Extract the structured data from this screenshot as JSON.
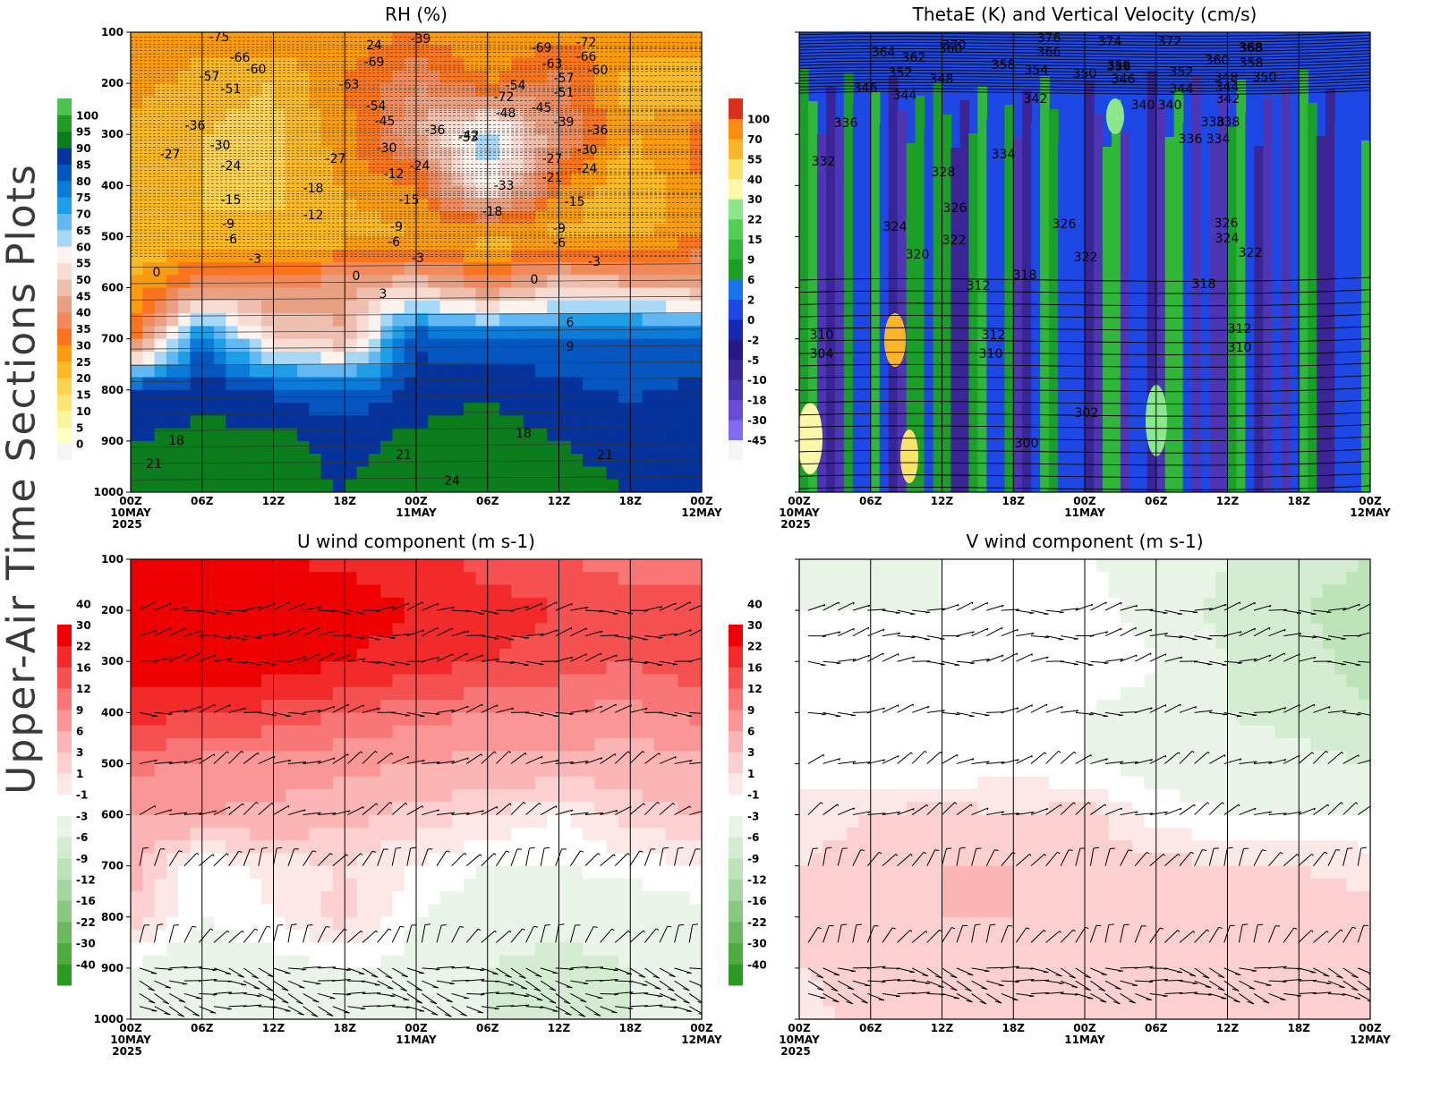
{
  "figure_title": "Upper-Air Time Sections Plots",
  "colors": {
    "rh": [
      "#f5f5f5",
      "#ffffc4",
      "#fdf59c",
      "#fde575",
      "#fcd350",
      "#fbb925",
      "#fb9b10",
      "#f9741c",
      "#f08a5a",
      "#e7a182",
      "#eebfae",
      "#f6dcd2",
      "#fcf3ef",
      "#a7d9f7",
      "#63b8f3",
      "#1f9ee8",
      "#0a7bd8",
      "#0656c2",
      "#05339b",
      "#0b7d1c",
      "#219a28",
      "#4cc251",
      "#82e57f"
    ],
    "thetae_w": [
      "#f5f5f5",
      "#836bf0",
      "#6a4ed2",
      "#4e35b3",
      "#3a2597",
      "#241a87",
      "#1428b4",
      "#1e48e6",
      "#1873ec",
      "#1a9f28",
      "#30b73a",
      "#55ce55",
      "#8ce68c",
      "#fbf8a8",
      "#f9e36a",
      "#fbb628",
      "#f98c12",
      "#d8321c",
      "#b71d18",
      "#951b15"
    ],
    "wind": [
      "#2b9a20",
      "#4faa42",
      "#6cb962",
      "#88c882",
      "#a4d79f",
      "#bde3b8",
      "#d4ecd1",
      "#e9f5e6",
      "#ffffff",
      "#fde8e8",
      "#fcd0d0",
      "#fbb5b5",
      "#fa9696",
      "#f87676",
      "#f55151",
      "#f22a2a",
      "#ee0000"
    ]
  },
  "panels": [
    {
      "id": "rh",
      "title": "RH (%)",
      "colorbar_labels": [
        "0",
        "5",
        "10",
        "15",
        "20",
        "25",
        "30",
        "35",
        "40",
        "45",
        "50",
        "55",
        "60",
        "65",
        "70",
        "75",
        "80",
        "85",
        "90",
        "95",
        "100"
      ],
      "chart_data": {
        "type": "heatmap",
        "title": "RH (%)",
        "y_axis": "pressure (hPa)",
        "ylim": [
          1000,
          100
        ],
        "xlim": [
          "2025-05-10 00Z",
          "2025-05-12 00Z"
        ],
        "x_ticks": [
          "00Z",
          "06Z",
          "12Z",
          "18Z",
          "00Z",
          "06Z",
          "12Z",
          "18Z",
          "00Z"
        ],
        "x_date_labels": [
          "10MAY",
          "11MAY",
          "12MAY"
        ],
        "x_year_label": "2025",
        "y_ticks": [
          "100",
          "200",
          "300",
          "400",
          "500",
          "600",
          "700",
          "800",
          "900",
          "1000"
        ],
        "field_levels": [
          1000,
          900,
          800,
          700,
          600,
          500,
          400,
          300,
          200,
          100
        ],
        "field_hours": [
          0,
          6,
          12,
          18,
          24,
          30,
          36,
          42,
          48
        ],
        "field_values": [
          [
            92,
            95,
            92,
            90,
            95,
            92,
            92,
            90,
            90
          ],
          [
            90,
            92,
            92,
            88,
            92,
            92,
            90,
            88,
            90
          ],
          [
            85,
            88,
            84,
            80,
            86,
            90,
            86,
            84,
            86
          ],
          [
            30,
            80,
            50,
            45,
            85,
            80,
            82,
            84,
            82
          ],
          [
            25,
            40,
            40,
            44,
            50,
            38,
            50,
            48,
            45
          ],
          [
            20,
            20,
            22,
            22,
            25,
            22,
            24,
            22,
            30
          ],
          [
            22,
            20,
            18,
            26,
            30,
            60,
            30,
            20,
            30
          ],
          [
            22,
            20,
            18,
            28,
            45,
            65,
            40,
            25,
            32
          ],
          [
            28,
            22,
            20,
            30,
            40,
            30,
            38,
            22,
            20
          ],
          [
            30,
            28,
            30,
            26,
            30,
            24,
            28,
            30,
            28
          ]
        ],
        "contour_labels": [
          "-75",
          "-66",
          "-60",
          "-57",
          "-51",
          "-36",
          "-30",
          "-27",
          "-24",
          "-15",
          "-9",
          "-6",
          "-3",
          "0",
          "3",
          "6",
          "9",
          "18",
          "21",
          "24",
          "-69",
          "-63",
          "-54",
          "-45",
          "-39",
          "-72",
          "-48",
          "-42",
          "-33",
          "-18",
          "-12",
          "-21"
        ]
      }
    },
    {
      "id": "thetae",
      "title": "ThetaE (K) and Vertical Velocity (cm/s)",
      "colorbar_labels": [
        "-45",
        "-30",
        "-18",
        "-10",
        "-5",
        "-2",
        "0",
        "2",
        "6",
        "9",
        "15",
        "22",
        "30",
        "40",
        "55",
        "70",
        "100"
      ],
      "chart_data": {
        "type": "heatmap",
        "title": "ThetaE (K) and Vertical Velocity (cm/s)",
        "y_axis": "pressure (hPa)",
        "ylim": [
          1000,
          100
        ],
        "xlim": [
          "2025-05-10 00Z",
          "2025-05-12 00Z"
        ],
        "x_ticks": [
          "00Z",
          "06Z",
          "12Z",
          "18Z",
          "00Z",
          "06Z",
          "12Z",
          "18Z",
          "00Z"
        ],
        "x_date_labels": [
          "10MAY",
          "11MAY",
          "12MAY"
        ],
        "x_year_label": "2025",
        "y_ticks": [
          "100",
          "200",
          "300",
          "400",
          "500",
          "600",
          "700",
          "800",
          "900",
          "1000"
        ],
        "thetae_contour_labels": [
          "364",
          "362",
          "360",
          "358",
          "354",
          "352",
          "346",
          "344",
          "370",
          "376",
          "374",
          "372",
          "366",
          "356",
          "350",
          "348",
          "368",
          "342",
          "340",
          "338",
          "336",
          "334",
          "332",
          "328",
          "326",
          "324",
          "322",
          "320",
          "318",
          "312",
          "310",
          "304",
          "302",
          "300"
        ]
      }
    },
    {
      "id": "uwind",
      "title": "U wind component (m s-1)",
      "colorbar_labels": [
        "-40",
        "-30",
        "-22",
        "-16",
        "-12",
        "-9",
        "-6",
        "-3",
        "-1",
        "1",
        "3",
        "6",
        "9",
        "12",
        "16",
        "22",
        "30",
        "40"
      ],
      "chart_data": {
        "type": "heatmap",
        "title": "U wind component (m s-1)",
        "y_axis": "pressure (hPa)",
        "ylim": [
          1000,
          100
        ],
        "xlim": [
          "2025-05-10 00Z",
          "2025-05-12 00Z"
        ],
        "x_ticks": [
          "00Z",
          "06Z",
          "12Z",
          "18Z",
          "00Z",
          "06Z",
          "12Z",
          "18Z",
          "00Z"
        ],
        "x_date_labels": [
          "10MAY",
          "11MAY",
          "12MAY"
        ],
        "x_year_label": "2025",
        "y_ticks": [
          "100",
          "200",
          "300",
          "400",
          "500",
          "600",
          "700",
          "800",
          "900",
          "1000"
        ],
        "field_levels": [
          1000,
          900,
          800,
          700,
          600,
          500,
          400,
          300,
          200,
          100
        ],
        "field_hours": [
          0,
          6,
          12,
          18,
          24,
          30,
          36,
          42,
          48
        ],
        "field_values": [
          [
            -3,
            -6,
            -4,
            -3,
            -4,
            -6,
            -7,
            -6,
            -6
          ],
          [
            -3,
            -6,
            -4,
            -3,
            -4,
            -6,
            -7,
            -6,
            -6
          ],
          [
            3,
            -3,
            -1,
            2,
            -3,
            -5,
            -5,
            -5,
            -4
          ],
          [
            4,
            -3,
            0,
            1,
            -1,
            -3,
            -3,
            -2,
            -1
          ],
          [
            6,
            6,
            5,
            4,
            2,
            1,
            -1,
            2,
            3
          ],
          [
            10,
            8,
            8,
            7,
            6,
            5,
            5,
            4,
            5
          ],
          [
            18,
            16,
            14,
            12,
            10,
            9,
            9,
            8,
            10
          ],
          [
            28,
            30,
            26,
            22,
            18,
            16,
            14,
            12,
            14
          ],
          [
            30,
            32,
            30,
            26,
            22,
            18,
            16,
            14,
            14
          ],
          [
            22,
            24,
            22,
            20,
            18,
            14,
            12,
            10,
            10
          ]
        ],
        "wind_barb_levels": [
          975,
          950,
          925,
          900,
          850,
          700,
          600,
          500,
          400,
          300,
          250,
          200
        ]
      }
    },
    {
      "id": "vwind",
      "title": "V wind component (m s-1)",
      "colorbar_labels": [
        "-40",
        "-30",
        "-22",
        "-16",
        "-12",
        "-9",
        "-6",
        "-3",
        "-1",
        "1",
        "3",
        "6",
        "9",
        "12",
        "16",
        "22",
        "30",
        "40"
      ],
      "chart_data": {
        "type": "heatmap",
        "title": "V wind component (m s-1)",
        "y_axis": "pressure (hPa)",
        "ylim": [
          1000,
          100
        ],
        "xlim": [
          "2025-05-10 00Z",
          "2025-05-12 00Z"
        ],
        "x_ticks": [
          "00Z",
          "06Z",
          "12Z",
          "18Z",
          "00Z",
          "06Z",
          "12Z",
          "18Z",
          "00Z"
        ],
        "x_date_labels": [
          "10MAY",
          "11MAY",
          "12MAY"
        ],
        "x_year_label": "2025",
        "y_ticks": [
          "100",
          "200",
          "300",
          "400",
          "500",
          "600",
          "700",
          "800",
          "900",
          "1000"
        ],
        "field_levels": [
          1000,
          900,
          800,
          700,
          600,
          500,
          400,
          300,
          200,
          100
        ],
        "field_hours": [
          0,
          6,
          12,
          18,
          24,
          30,
          36,
          42,
          48
        ],
        "field_values": [
          [
            0,
            2,
            2,
            1,
            2,
            1,
            1,
            1,
            1
          ],
          [
            1,
            2,
            3,
            2,
            3,
            2,
            2,
            2,
            2
          ],
          [
            2,
            3,
            3,
            3,
            3,
            2,
            2,
            2,
            2
          ],
          [
            1,
            2,
            3,
            3,
            2,
            2,
            1,
            1,
            0
          ],
          [
            0,
            1,
            2,
            1,
            2,
            -2,
            -3,
            -3,
            -3
          ],
          [
            -2,
            -3,
            -3,
            -2,
            -3,
            -4,
            -5,
            -5,
            -6
          ],
          [
            -2,
            -3,
            -3,
            -3,
            -3,
            -4,
            -6,
            -7,
            -9
          ],
          [
            -2,
            -2,
            -3,
            -2,
            -1,
            -3,
            -6,
            -8,
            -10
          ],
          [
            -3,
            -3,
            -3,
            -2,
            -2,
            -4,
            -7,
            -9,
            -10
          ],
          [
            -4,
            -4,
            -3,
            -3,
            -3,
            -4,
            -6,
            -8,
            -9
          ]
        ],
        "wind_barb_levels": [
          950,
          925,
          900,
          850,
          700,
          600,
          500,
          400,
          300,
          250,
          200
        ]
      }
    }
  ]
}
